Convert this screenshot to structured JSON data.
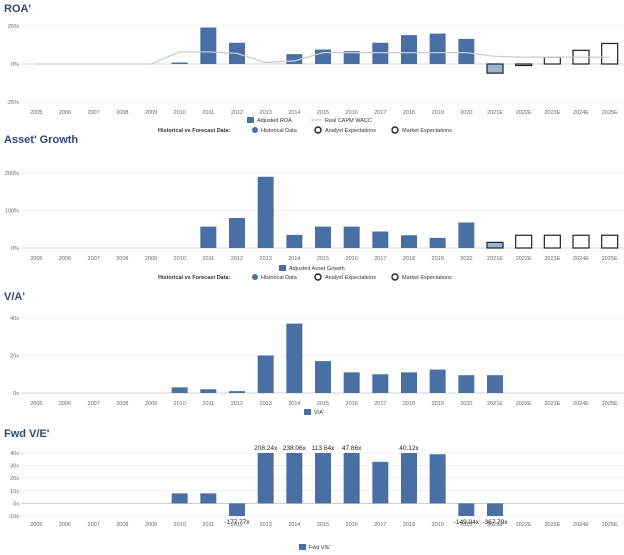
{
  "years": [
    "2005",
    "2006",
    "2007",
    "2008",
    "2009",
    "2010",
    "2011",
    "2012",
    "2013",
    "2014",
    "2015",
    "2016",
    "2017",
    "2018",
    "2019",
    "2020",
    "2021E",
    "2022E",
    "2023E",
    "2024E",
    "2025E"
  ],
  "colors": {
    "bar": "#4a6fa5",
    "line": "#c8ccd2",
    "grid": "#e3e3e3",
    "forecast": "#222222",
    "forecastFill": "#9bb5d9"
  },
  "legend_forecast": {
    "label": "Historical vs Forecast Data:",
    "historical": "Historical Data",
    "analyst": "Analyst Expectations",
    "market": "Market Expectations"
  },
  "chart_data": [
    {
      "id": "roa",
      "type": "bar",
      "title": "ROA'",
      "ylim": [
        -25,
        25
      ],
      "yticks": [
        [
          "25%",
          25
        ],
        [
          "0%",
          0
        ],
        [
          "-25%",
          -25
        ]
      ],
      "values": [
        null,
        null,
        null,
        null,
        null,
        1,
        24,
        14,
        null,
        6.5,
        9.5,
        8.5,
        14,
        19,
        20,
        16.5,
        -6,
        -1,
        4.5,
        9,
        13.5
      ],
      "forecast_from": 16,
      "line_label": "Real CAPM WACC",
      "line_values": [
        0,
        0,
        0,
        0,
        0,
        8,
        8,
        7,
        1,
        2,
        7.5,
        7.5,
        7.5,
        7.5,
        7.5,
        7.5,
        5,
        4.5,
        4.5,
        4.5,
        4.5
      ],
      "legend": [
        "Adjusted ROA",
        "Real CAPM WACC"
      ]
    },
    {
      "id": "growth",
      "type": "bar",
      "title": "Asset' Growth",
      "ylim": [
        0,
        200
      ],
      "yticks": [
        [
          "200%",
          200
        ],
        [
          "100%",
          100
        ],
        [
          "0%",
          0
        ]
      ],
      "values": [
        null,
        null,
        null,
        null,
        null,
        null,
        57,
        80,
        190,
        35,
        57,
        57,
        44,
        34,
        27,
        68,
        15,
        34,
        34,
        34,
        34
      ],
      "forecast_from": 16,
      "legend": [
        "Adjusted Asset Growth"
      ]
    },
    {
      "id": "va",
      "type": "bar",
      "title": "V/A'",
      "ylim": [
        0,
        40
      ],
      "yticks": [
        [
          "40x",
          40
        ],
        [
          "20x",
          20
        ],
        [
          "0x",
          0
        ]
      ],
      "values": [
        null,
        null,
        null,
        null,
        null,
        3,
        2,
        1,
        20,
        37,
        17,
        11,
        10,
        11,
        12.5,
        9.5,
        9.5,
        null,
        null,
        null,
        null
      ],
      "legend": [
        "V/A'"
      ]
    },
    {
      "id": "fwdve",
      "type": "bar",
      "title": "Fwd V/E'",
      "ylim": [
        -10,
        40
      ],
      "yticks": [
        [
          "40x",
          40
        ],
        [
          "30x",
          30
        ],
        [
          "20x",
          20
        ],
        [
          "10x",
          10
        ],
        [
          "0x",
          0
        ],
        [
          "-10x",
          -10
        ]
      ],
      "values": [
        null,
        null,
        null,
        null,
        null,
        8,
        8,
        -10,
        40,
        40,
        40,
        40,
        33,
        40,
        39,
        -10,
        -10,
        null,
        null,
        null,
        null
      ],
      "labels": [
        null,
        null,
        null,
        null,
        null,
        null,
        null,
        "-177.77x",
        "208.24x",
        "238.06x",
        "113.64x",
        "47.86x",
        null,
        "40.12x",
        null,
        "-149.04x",
        "-367.79x",
        null,
        null,
        null,
        null
      ],
      "legend": [
        "Fwd V/E'"
      ]
    }
  ]
}
